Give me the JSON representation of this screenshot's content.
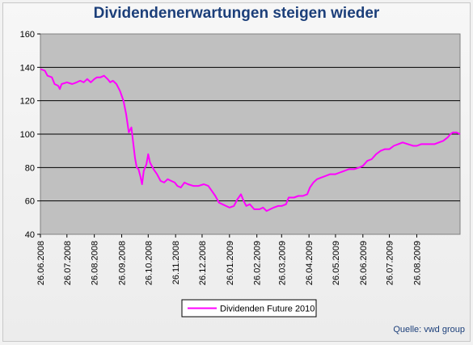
{
  "source_note": "Quelle: vwd group",
  "chart_data": {
    "type": "line",
    "title": "Dividendenerwartungen steigen wieder",
    "xlabel": "",
    "ylabel": "",
    "ylim": [
      40,
      160
    ],
    "yticks": [
      40,
      60,
      80,
      100,
      120,
      140,
      160
    ],
    "grid": "horizontal",
    "legend_position": "bottom-center",
    "plot_background": "#c0c0c0",
    "xticks": [
      "26.06.2008",
      "26.07.2008",
      "26.08.2008",
      "26.09.2008",
      "26.10.2008",
      "26.11.2008",
      "26.12.2008",
      "26.01.2009",
      "26.02.2009",
      "26.03.2009",
      "26.04.2009",
      "26.05.2009",
      "26.06.2009",
      "26.07.2009",
      "26.08.2009"
    ],
    "xrange": [
      "26.06.2008",
      "14.10.2009"
    ],
    "series": [
      {
        "name": "Dividenden Future 2010",
        "color": "#ff00ff",
        "data": [
          [
            "26.06.2008",
            139
          ],
          [
            "01.07.2008",
            138
          ],
          [
            "04.07.2008",
            135
          ],
          [
            "09.07.2008",
            134
          ],
          [
            "12.07.2008",
            130
          ],
          [
            "16.07.2008",
            129
          ],
          [
            "18.07.2008",
            127
          ],
          [
            "20.07.2008",
            130
          ],
          [
            "26.07.2008",
            131
          ],
          [
            "01.08.2008",
            130
          ],
          [
            "06.08.2008",
            131
          ],
          [
            "10.08.2008",
            132
          ],
          [
            "14.08.2008",
            131
          ],
          [
            "18.08.2008",
            133
          ],
          [
            "22.08.2008",
            131
          ],
          [
            "26.08.2008",
            133
          ],
          [
            "29.08.2008",
            134
          ],
          [
            "02.09.2008",
            134
          ],
          [
            "06.09.2008",
            135
          ],
          [
            "10.09.2008",
            133
          ],
          [
            "13.09.2008",
            131
          ],
          [
            "16.09.2008",
            132
          ],
          [
            "20.09.2008",
            130
          ],
          [
            "24.09.2008",
            126
          ],
          [
            "28.09.2008",
            120
          ],
          [
            "01.10.2008",
            112
          ],
          [
            "04.10.2008",
            101
          ],
          [
            "07.10.2008",
            104
          ],
          [
            "09.10.2008",
            95
          ],
          [
            "11.10.2008",
            86
          ],
          [
            "13.10.2008",
            80
          ],
          [
            "15.10.2008",
            79
          ],
          [
            "17.10.2008",
            75
          ],
          [
            "19.10.2008",
            70
          ],
          [
            "21.10.2008",
            78
          ],
          [
            "24.10.2008",
            82
          ],
          [
            "26.10.2008",
            88
          ],
          [
            "28.10.2008",
            83
          ],
          [
            "01.11.2008",
            79
          ],
          [
            "05.11.2008",
            76
          ],
          [
            "09.11.2008",
            72
          ],
          [
            "13.11.2008",
            71
          ],
          [
            "17.11.2008",
            73
          ],
          [
            "21.11.2008",
            72
          ],
          [
            "25.11.2008",
            71
          ],
          [
            "28.11.2008",
            69
          ],
          [
            "02.12.2008",
            68
          ],
          [
            "06.12.2008",
            71
          ],
          [
            "10.12.2008",
            70
          ],
          [
            "16.12.2008",
            69
          ],
          [
            "22.12.2008",
            69
          ],
          [
            "28.12.2008",
            70
          ],
          [
            "02.01.2009",
            69
          ],
          [
            "06.01.2009",
            66
          ],
          [
            "10.01.2009",
            63
          ],
          [
            "14.01.2009",
            59
          ],
          [
            "18.01.2009",
            58
          ],
          [
            "22.01.2009",
            57
          ],
          [
            "26.01.2009",
            56
          ],
          [
            "31.01.2009",
            57
          ],
          [
            "04.02.2009",
            61
          ],
          [
            "08.02.2009",
            64
          ],
          [
            "11.02.2009",
            60
          ],
          [
            "14.02.2009",
            57
          ],
          [
            "18.02.2009",
            58
          ],
          [
            "23.02.2009",
            55
          ],
          [
            "26.02.2009",
            55
          ],
          [
            "01.03.2009",
            55
          ],
          [
            "05.03.2009",
            56
          ],
          [
            "09.03.2009",
            54
          ],
          [
            "13.03.2009",
            55
          ],
          [
            "17.03.2009",
            56
          ],
          [
            "22.03.2009",
            57
          ],
          [
            "26.03.2009",
            57
          ],
          [
            "31.03.2009",
            58
          ],
          [
            "03.04.2009",
            62
          ],
          [
            "09.04.2009",
            62
          ],
          [
            "14.04.2009",
            63
          ],
          [
            "19.04.2009",
            63
          ],
          [
            "24.04.2009",
            64
          ],
          [
            "27.04.2009",
            68
          ],
          [
            "01.05.2009",
            71
          ],
          [
            "05.05.2009",
            73
          ],
          [
            "10.05.2009",
            74
          ],
          [
            "15.05.2009",
            75
          ],
          [
            "20.05.2009",
            76
          ],
          [
            "26.05.2009",
            76
          ],
          [
            "31.05.2009",
            77
          ],
          [
            "05.06.2009",
            78
          ],
          [
            "10.06.2009",
            79
          ],
          [
            "16.06.2009",
            79
          ],
          [
            "22.06.2009",
            80
          ],
          [
            "26.06.2009",
            81
          ],
          [
            "01.07.2009",
            84
          ],
          [
            "06.07.2009",
            85
          ],
          [
            "11.07.2009",
            88
          ],
          [
            "16.07.2009",
            90
          ],
          [
            "21.07.2009",
            91
          ],
          [
            "26.07.2009",
            91
          ],
          [
            "31.07.2009",
            93
          ],
          [
            "05.08.2009",
            94
          ],
          [
            "10.08.2009",
            95
          ],
          [
            "16.08.2009",
            94
          ],
          [
            "22.08.2009",
            93
          ],
          [
            "26.08.2009",
            93
          ],
          [
            "31.08.2009",
            94
          ],
          [
            "05.09.2009",
            94
          ],
          [
            "10.09.2009",
            94
          ],
          [
            "15.09.2009",
            94
          ],
          [
            "20.09.2009",
            95
          ],
          [
            "25.09.2009",
            96
          ],
          [
            "30.09.2009",
            98
          ],
          [
            "03.10.2009",
            100
          ],
          [
            "06.10.2009",
            101
          ],
          [
            "10.10.2009",
            101
          ],
          [
            "14.10.2009",
            100
          ]
        ]
      }
    ]
  }
}
